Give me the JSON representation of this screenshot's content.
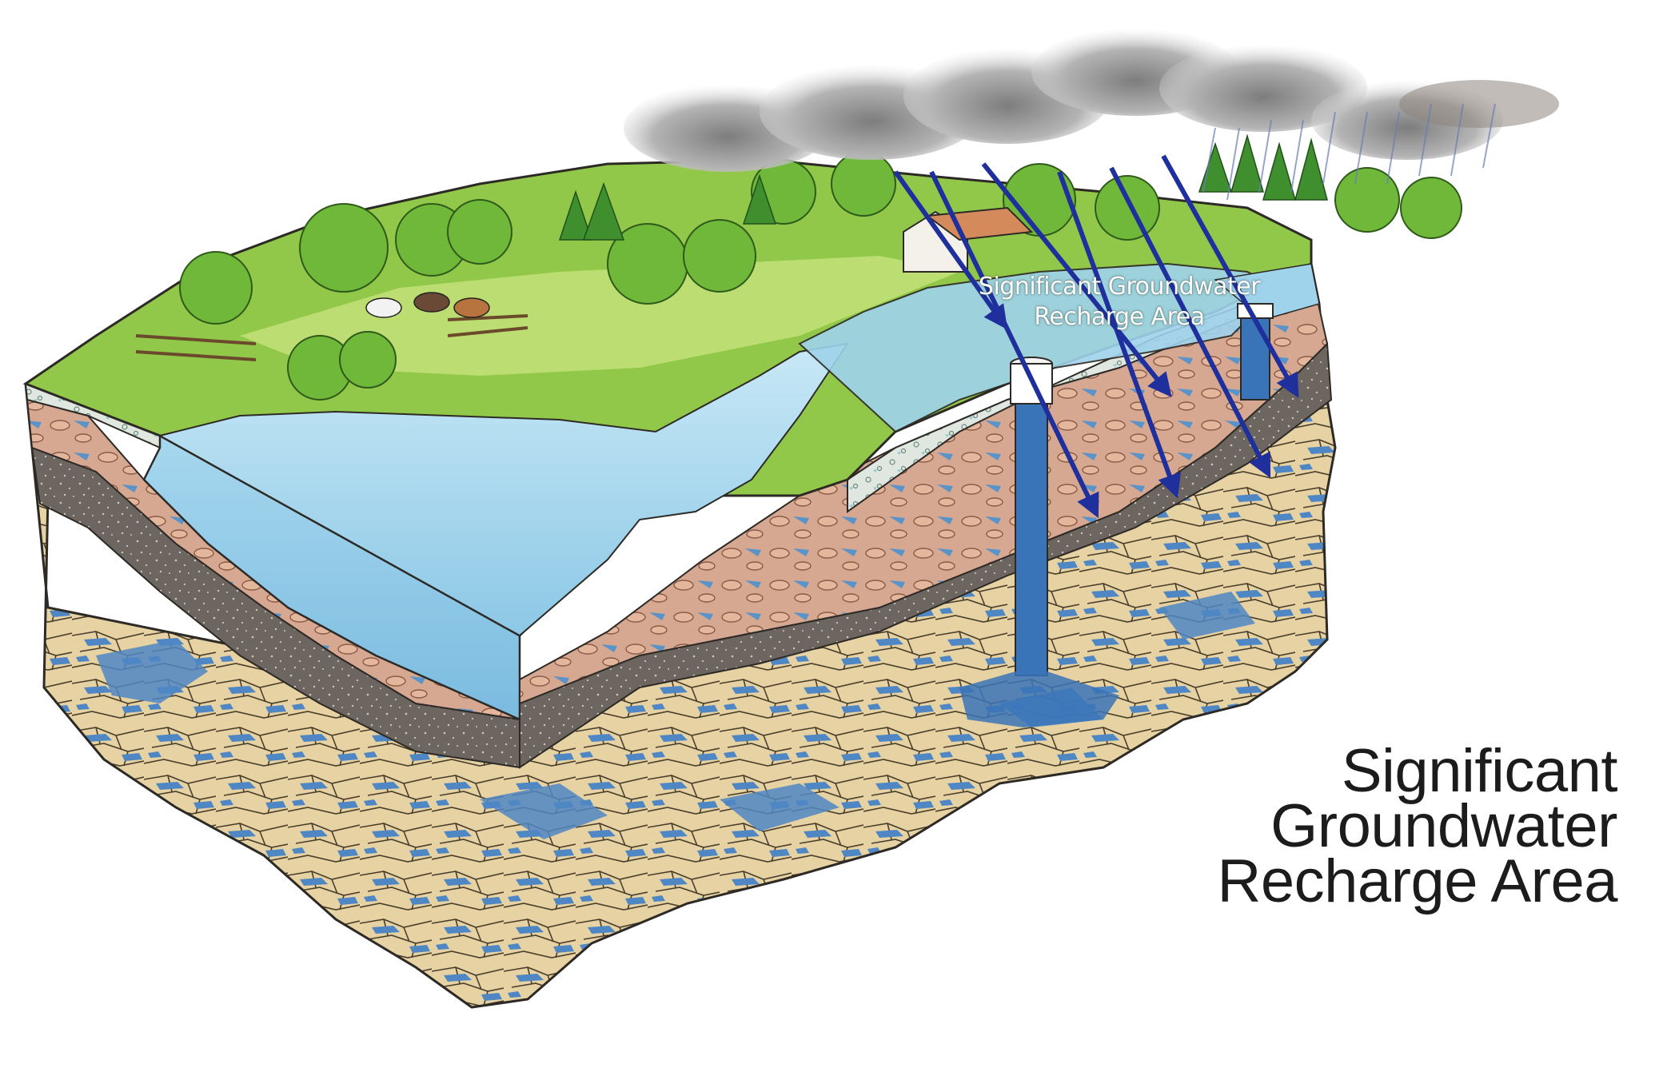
{
  "diagram": {
    "recharge_label": {
      "line1": "Significant Groundwater",
      "line2": "Recharge Area"
    },
    "title": {
      "line1": "Significant",
      "line2": "Groundwater",
      "line3": "Recharge Area"
    },
    "colors": {
      "arrow": "#1f2f9c",
      "water": "#a9d6ec",
      "groundwater": "#4a86c4",
      "grass": "#8cc63f",
      "bedrock": "#e8d3a6",
      "till": "#d9a78f",
      "clay": "#6b625c"
    }
  }
}
